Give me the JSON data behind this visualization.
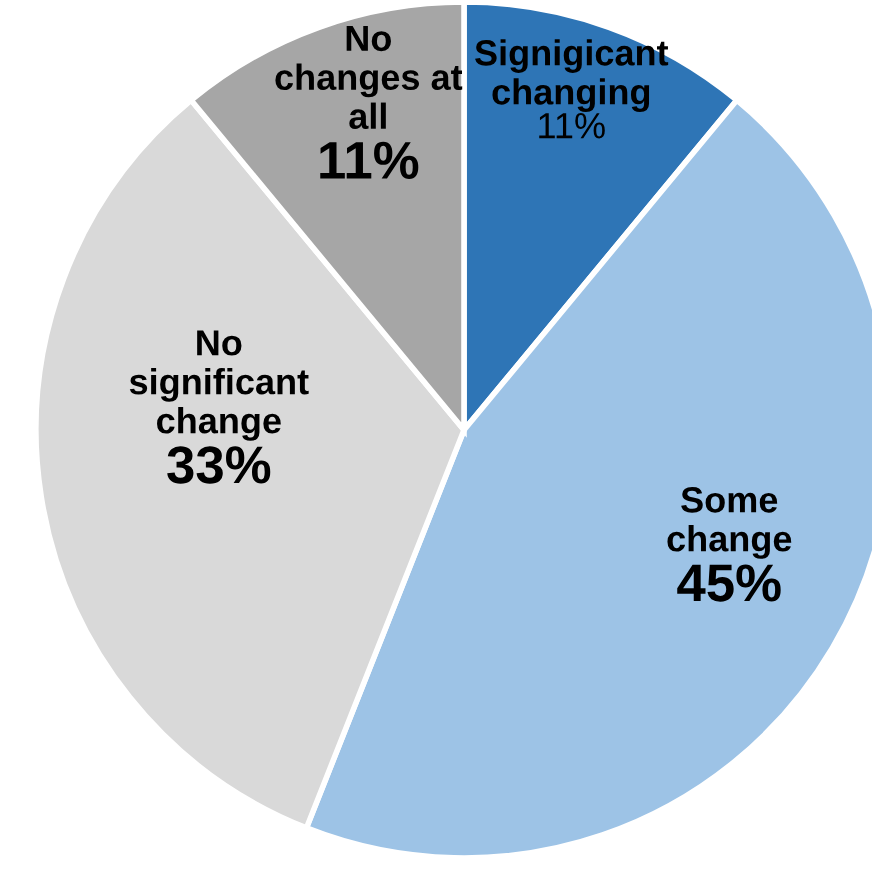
{
  "chart_data": {
    "type": "pie",
    "categories": [
      "Signigicant\nchanging",
      "Some\nchange",
      "No\nsignificant\nchange",
      "No\nchanges at\nall"
    ],
    "values": [
      11,
      45,
      33,
      11
    ],
    "value_labels": [
      "11%",
      "45%",
      "33%",
      "11%"
    ],
    "colors": [
      "#2e75b6",
      "#9dc3e6",
      "#d9d9d9",
      "#a6a6a6"
    ],
    "legend": false
  }
}
